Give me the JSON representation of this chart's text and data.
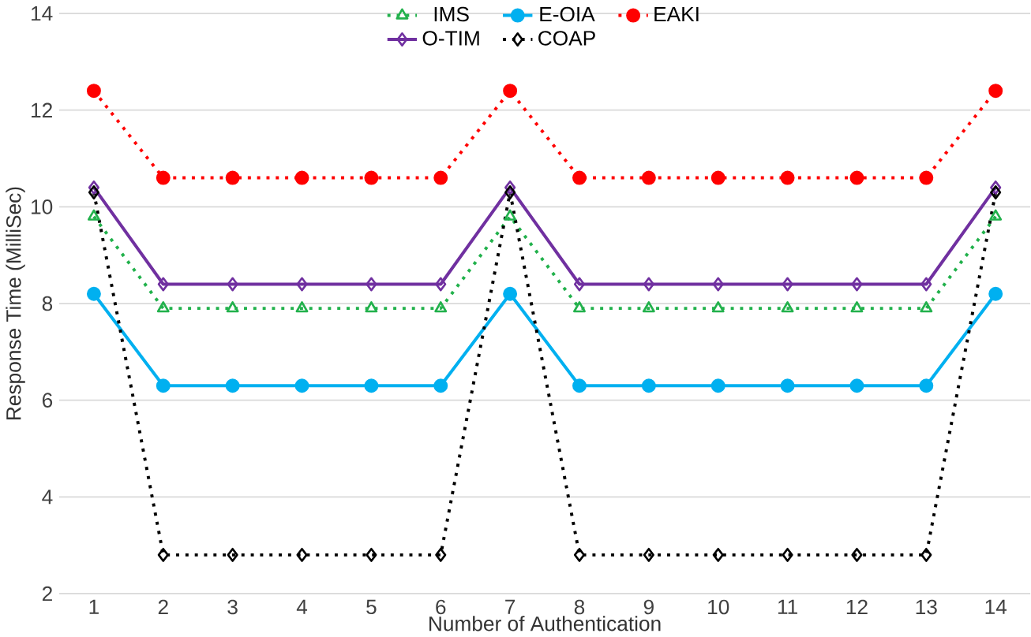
{
  "chart_data": {
    "type": "line",
    "xlabel": "Number of Authentication",
    "ylabel": "Response Time (MilliSec)",
    "categories": [
      "1",
      "2",
      "3",
      "4",
      "5",
      "6",
      "7",
      "8",
      "9",
      "10",
      "11",
      "12",
      "13",
      "14"
    ],
    "ylim": [
      2,
      14
    ],
    "yticks": [
      2,
      4,
      6,
      8,
      10,
      12,
      14
    ],
    "grid": "y",
    "legend": "top",
    "series": [
      {
        "name": "IMS",
        "color": "#22b14c",
        "marker": "triangle",
        "line_style": "dotted",
        "values": [
          9.8,
          7.9,
          7.9,
          7.9,
          7.9,
          7.9,
          9.8,
          7.9,
          7.9,
          7.9,
          7.9,
          7.9,
          7.9,
          9.8
        ]
      },
      {
        "name": "E-OIA",
        "color": "#00b0f0",
        "marker": "circle",
        "line_style": "solid",
        "values": [
          8.2,
          6.3,
          6.3,
          6.3,
          6.3,
          6.3,
          8.2,
          6.3,
          6.3,
          6.3,
          6.3,
          6.3,
          6.3,
          8.2
        ]
      },
      {
        "name": "EAKI",
        "color": "#ff0000",
        "marker": "circle",
        "line_style": "dotted",
        "values": [
          12.4,
          10.6,
          10.6,
          10.6,
          10.6,
          10.6,
          12.4,
          10.6,
          10.6,
          10.6,
          10.6,
          10.6,
          10.6,
          12.4
        ]
      },
      {
        "name": "O-TIM",
        "color": "#7030a0",
        "marker": "diamond",
        "line_style": "solid",
        "values": [
          10.4,
          8.4,
          8.4,
          8.4,
          8.4,
          8.4,
          10.4,
          8.4,
          8.4,
          8.4,
          8.4,
          8.4,
          8.4,
          10.4
        ]
      },
      {
        "name": "COAP",
        "color": "#000000",
        "marker": "diamond",
        "line_style": "dotted",
        "values": [
          10.3,
          2.8,
          2.8,
          2.8,
          2.8,
          2.8,
          10.3,
          2.8,
          2.8,
          2.8,
          2.8,
          2.8,
          2.8,
          10.3
        ]
      }
    ]
  }
}
